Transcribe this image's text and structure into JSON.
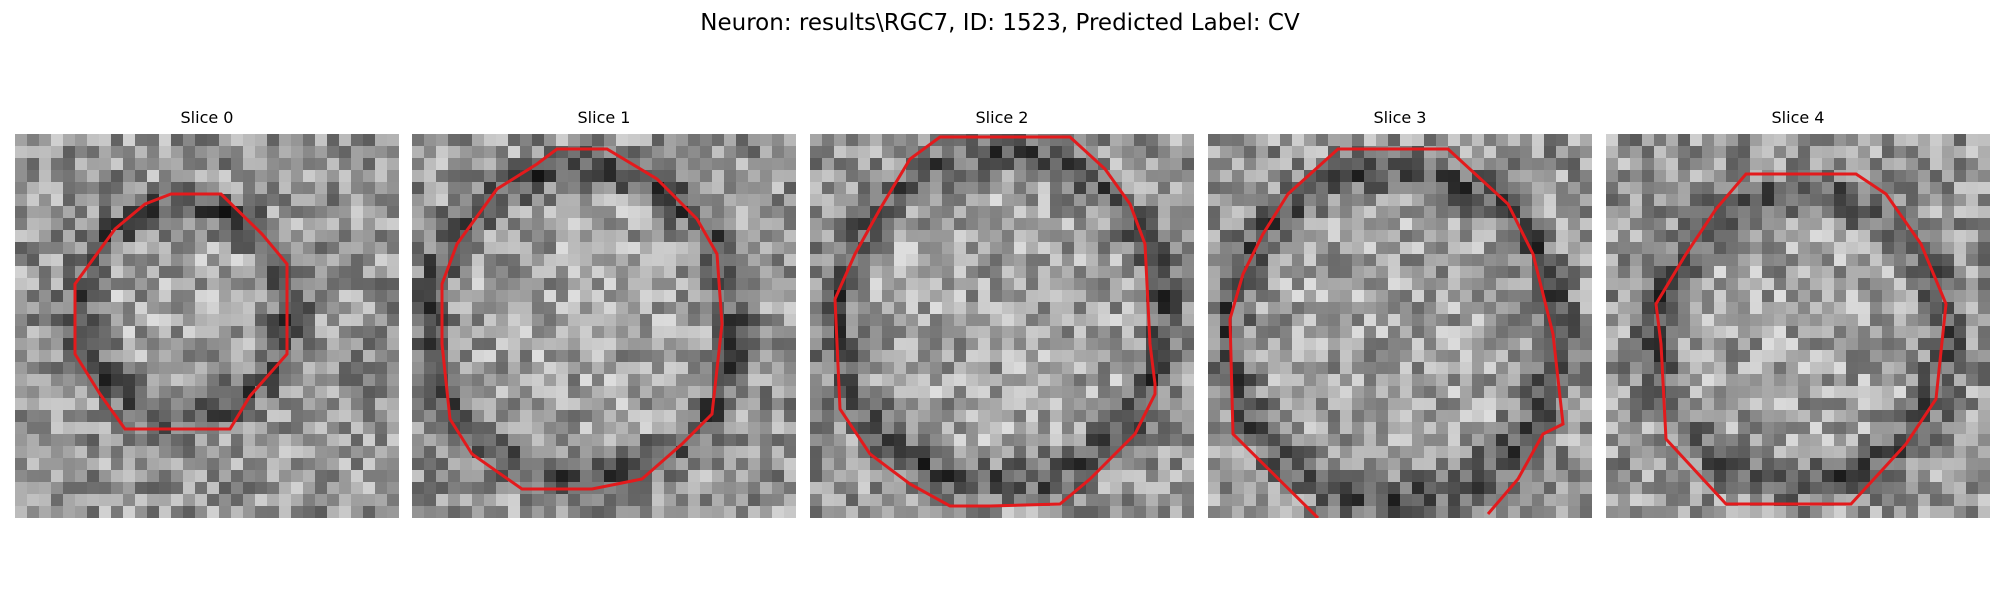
{
  "figure": {
    "title": "Neuron: results\\RGC7, ID: 1523, Predicted Label: CV"
  },
  "style": {
    "contour_color": "#e31a1c",
    "colormap": "grayscale"
  },
  "panels": [
    {
      "title": "Slice 0"
    },
    {
      "title": "Slice 1"
    },
    {
      "title": "Slice 2"
    },
    {
      "title": "Slice 3"
    },
    {
      "title": "Slice 4"
    }
  ]
}
